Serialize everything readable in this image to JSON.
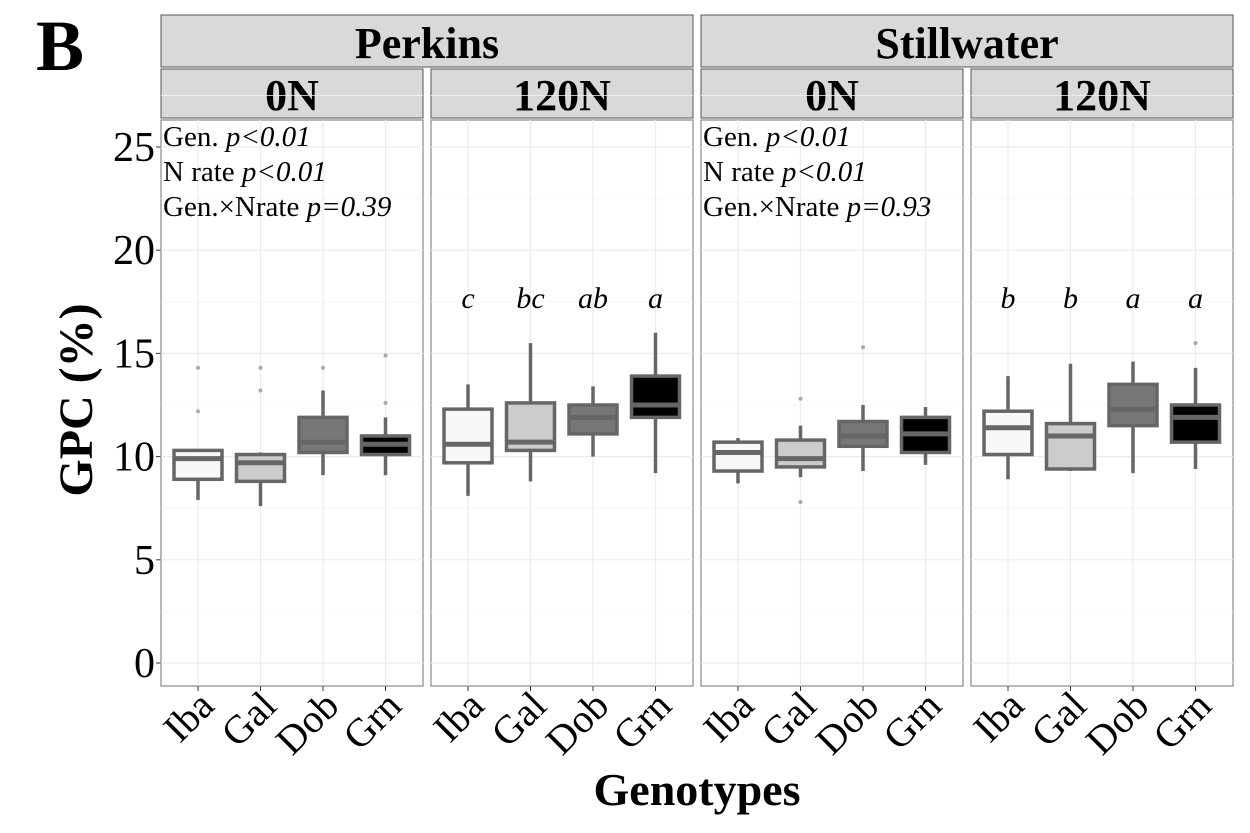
{
  "panel_letter": "B",
  "chart_data": {
    "type": "boxplot",
    "ylabel": "GPC (%)",
    "xlabel": "Genotypes",
    "ylim": [
      -1,
      27.5
    ],
    "yticks": [
      0,
      5,
      10,
      15,
      20,
      25
    ],
    "grid": true,
    "categories": [
      "Iba",
      "Gal",
      "Dob",
      "Grn"
    ],
    "fill_colors": {
      "Iba": "#f8f8f8",
      "Gal": "#cccccc",
      "Dob": "#777777",
      "Grn": "#000000"
    },
    "outline_color": "#666666",
    "locations": [
      {
        "name": "Perkins",
        "anova": [
          {
            "label": "Gen. ",
            "p": "p<0.01"
          },
          {
            "label": "N rate ",
            "p": "p<0.01"
          },
          {
            "label": "Gen.×Nrate ",
            "p": "p=0.39"
          }
        ],
        "panels": [
          {
            "name": "0N",
            "letters": [],
            "boxes": [
              {
                "min": 7.9,
                "q1": 8.9,
                "median": 9.9,
                "q3": 10.3,
                "max": 10.3,
                "outliers": [
                  12.2,
                  14.3
                ]
              },
              {
                "min": 7.6,
                "q1": 8.8,
                "median": 9.7,
                "q3": 10.1,
                "max": 10.2,
                "outliers": [
                  13.2,
                  14.3
                ]
              },
              {
                "min": 9.1,
                "q1": 10.2,
                "median": 10.7,
                "q3": 11.9,
                "max": 13.2,
                "outliers": [
                  14.3
                ]
              },
              {
                "min": 9.1,
                "q1": 10.1,
                "median": 10.6,
                "q3": 11.0,
                "max": 11.9,
                "outliers": [
                  12.6,
                  14.9
                ]
              }
            ]
          },
          {
            "name": "120N",
            "letters": [
              "c",
              "bc",
              "ab",
              "a"
            ],
            "boxes": [
              {
                "min": 8.1,
                "q1": 9.7,
                "median": 10.6,
                "q3": 12.3,
                "max": 13.5,
                "outliers": []
              },
              {
                "min": 8.8,
                "q1": 10.3,
                "median": 10.7,
                "q3": 12.6,
                "max": 15.5,
                "outliers": []
              },
              {
                "min": 10.0,
                "q1": 11.1,
                "median": 11.9,
                "q3": 12.5,
                "max": 13.4,
                "outliers": []
              },
              {
                "min": 9.2,
                "q1": 11.9,
                "median": 12.5,
                "q3": 13.9,
                "max": 16.0,
                "outliers": []
              }
            ]
          }
        ]
      },
      {
        "name": "Stillwater",
        "anova": [
          {
            "label": "Gen. ",
            "p": "p<0.01"
          },
          {
            "label": "N rate ",
            "p": "p<0.01"
          },
          {
            "label": "Gen.×Nrate ",
            "p": "p=0.93"
          }
        ],
        "panels": [
          {
            "name": "0N",
            "letters": [],
            "boxes": [
              {
                "min": 8.7,
                "q1": 9.3,
                "median": 10.2,
                "q3": 10.7,
                "max": 10.9,
                "outliers": []
              },
              {
                "min": 9.0,
                "q1": 9.5,
                "median": 9.9,
                "q3": 10.8,
                "max": 11.5,
                "outliers": [
                  7.8,
                  12.8
                ]
              },
              {
                "min": 9.3,
                "q1": 10.5,
                "median": 11.0,
                "q3": 11.7,
                "max": 12.5,
                "outliers": [
                  15.3
                ]
              },
              {
                "min": 9.6,
                "q1": 10.2,
                "median": 11.1,
                "q3": 11.9,
                "max": 12.4,
                "outliers": []
              }
            ]
          },
          {
            "name": "120N",
            "letters": [
              "b",
              "b",
              "a",
              "a"
            ],
            "boxes": [
              {
                "min": 8.9,
                "q1": 10.1,
                "median": 11.4,
                "q3": 12.2,
                "max": 13.9,
                "outliers": []
              },
              {
                "min": 9.3,
                "q1": 9.4,
                "median": 11.0,
                "q3": 11.6,
                "max": 14.5,
                "outliers": []
              },
              {
                "min": 9.2,
                "q1": 11.5,
                "median": 12.3,
                "q3": 13.5,
                "max": 14.6,
                "outliers": []
              },
              {
                "min": 9.4,
                "q1": 10.7,
                "median": 11.9,
                "q3": 12.5,
                "max": 14.3,
                "outliers": [
                  15.5
                ]
              }
            ]
          }
        ]
      }
    ]
  }
}
